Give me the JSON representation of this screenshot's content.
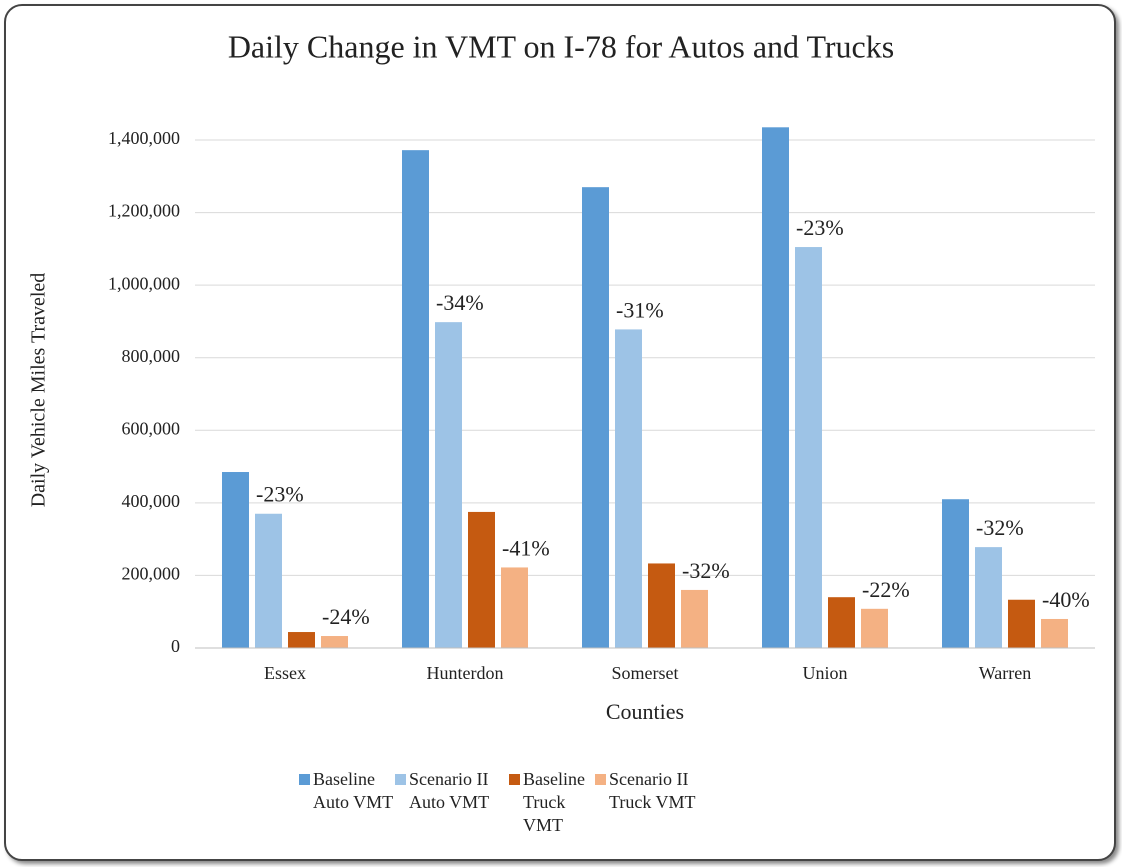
{
  "chart_data": {
    "type": "bar",
    "title": "Daily Change in VMT on I-78 for Autos and Trucks",
    "x_label": "Counties",
    "y_label": "Daily Vehicle Miles Traveled",
    "categories": [
      "Essex",
      "Hunterdon",
      "Somerset",
      "Union",
      "Warren"
    ],
    "series": [
      {
        "name": "Baseline Auto VMT",
        "color": "#5b9bd5",
        "values": [
          485000,
          1372000,
          1270000,
          1435000,
          410000
        ]
      },
      {
        "name": "Scenario II Auto VMT",
        "color": "#9dc3e6",
        "values": [
          370000,
          898000,
          878000,
          1105000,
          278000
        ],
        "labels": [
          "-23%",
          "-34%",
          "-31%",
          "-23%",
          "-32%"
        ]
      },
      {
        "name": "Baseline Truck VMT",
        "color": "#c55a11",
        "values": [
          44000,
          375000,
          233000,
          140000,
          133000
        ]
      },
      {
        "name": "Scenario II Truck VMT",
        "color": "#f4b183",
        "values": [
          33000,
          222000,
          160000,
          108000,
          80000
        ],
        "labels": [
          "-24%",
          "-41%",
          "-32%",
          "-22%",
          "-40%"
        ]
      }
    ],
    "ylim": [
      0,
      1600000
    ],
    "yticks": [
      0,
      {
        "value": 200000,
        "label": "200,000"
      },
      {
        "value": 400000,
        "label": "400,000"
      },
      {
        "value": 600000,
        "label": "600,000"
      },
      {
        "value": 800000,
        "label": "800,000"
      },
      {
        "value": 1000000,
        "label": "1,000,000"
      },
      {
        "value": 1200000,
        "label": "1,200,000"
      },
      {
        "value": 1400000,
        "label": "1,400,000"
      }
    ],
    "grid": true,
    "legend": "bottom"
  }
}
